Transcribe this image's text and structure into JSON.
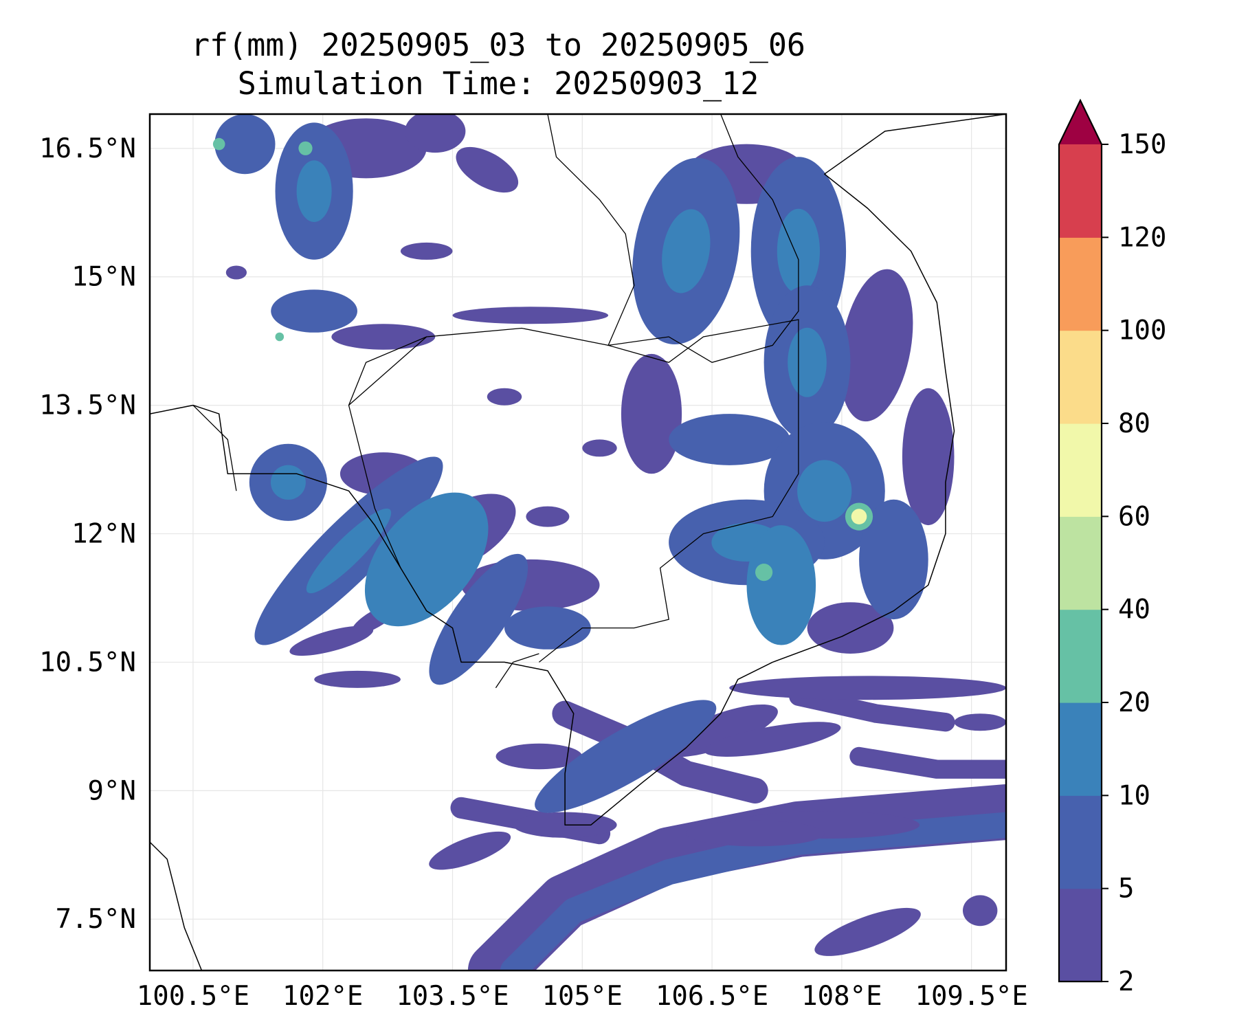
{
  "title": {
    "line1": "rf(mm) 20250905_03 to 20250905_06",
    "line2": "Simulation Time: 20250903_12"
  },
  "map": {
    "lon_range": [
      100.0,
      109.9
    ],
    "lat_range": [
      6.9,
      16.9
    ],
    "lon_ticks": [
      {
        "value": 100.5,
        "label": "100.5°E"
      },
      {
        "value": 102.0,
        "label": "102°E"
      },
      {
        "value": 103.5,
        "label": "103.5°E"
      },
      {
        "value": 105.0,
        "label": "105°E"
      },
      {
        "value": 106.5,
        "label": "106.5°E"
      },
      {
        "value": 108.0,
        "label": "108°E"
      },
      {
        "value": 109.5,
        "label": "109.5°E"
      }
    ],
    "lat_ticks": [
      {
        "value": 7.5,
        "label": "7.5°N"
      },
      {
        "value": 9.0,
        "label": "9°N"
      },
      {
        "value": 10.5,
        "label": "10.5°N"
      },
      {
        "value": 12.0,
        "label": "12°N"
      },
      {
        "value": 13.5,
        "label": "13.5°N"
      },
      {
        "value": 15.0,
        "label": "15°N"
      },
      {
        "value": 16.5,
        "label": "16.5°N"
      }
    ],
    "grid": true
  },
  "colorbar": {
    "levels": [
      "2",
      "5",
      "10",
      "20",
      "40",
      "60",
      "80",
      "100",
      "120",
      "150"
    ],
    "colors": [
      "#5a4fa2",
      "#4761ae",
      "#3a82ba",
      "#66c1a5",
      "#bde3a1",
      "#f1f8aa",
      "#fbdc8a",
      "#f89c5a",
      "#d73f4e",
      "#9e0142"
    ],
    "extend": "max"
  },
  "rain_features": [
    {
      "lon": 101.1,
      "lat": 16.55,
      "rx": 0.35,
      "ry": 0.35,
      "ang": 0,
      "lvl": 1
    },
    {
      "lon": 101.9,
      "lat": 16.0,
      "rx": 0.45,
      "ry": 0.8,
      "ang": 0,
      "lvl": 1
    },
    {
      "lon": 102.5,
      "lat": 16.5,
      "rx": 0.7,
      "ry": 0.35,
      "ang": 0,
      "lvl": 0
    },
    {
      "lon": 103.3,
      "lat": 16.7,
      "rx": 0.35,
      "ry": 0.25,
      "ang": 0,
      "lvl": 0
    },
    {
      "lon": 103.9,
      "lat": 16.25,
      "rx": 0.4,
      "ry": 0.2,
      "ang": 30,
      "lvl": 0
    },
    {
      "lon": 101.9,
      "lat": 14.6,
      "rx": 0.5,
      "ry": 0.25,
      "ang": 0,
      "lvl": 1
    },
    {
      "lon": 102.7,
      "lat": 14.3,
      "rx": 0.6,
      "ry": 0.15,
      "ang": 0,
      "lvl": 0
    },
    {
      "lon": 104.4,
      "lat": 14.55,
      "rx": 0.9,
      "ry": 0.1,
      "ang": 0,
      "lvl": 0
    },
    {
      "lon": 101.6,
      "lat": 12.6,
      "rx": 0.45,
      "ry": 0.45,
      "ang": 0,
      "lvl": 1
    },
    {
      "lon": 102.7,
      "lat": 12.7,
      "rx": 0.5,
      "ry": 0.25,
      "ang": 0,
      "lvl": 0
    },
    {
      "lon": 102.3,
      "lat": 11.8,
      "rx": 1.5,
      "ry": 0.35,
      "ang": -45,
      "lvl": 1
    },
    {
      "lon": 103.2,
      "lat": 11.7,
      "rx": 0.9,
      "ry": 0.55,
      "ang": -50,
      "lvl": 2
    },
    {
      "lon": 103.6,
      "lat": 12.0,
      "rx": 0.7,
      "ry": 0.35,
      "ang": -30,
      "lvl": 0
    },
    {
      "lon": 103.8,
      "lat": 11.0,
      "rx": 0.9,
      "ry": 0.3,
      "ang": -55,
      "lvl": 1
    },
    {
      "lon": 104.4,
      "lat": 11.4,
      "rx": 0.8,
      "ry": 0.3,
      "ang": 0,
      "lvl": 0
    },
    {
      "lon": 104.6,
      "lat": 10.9,
      "rx": 0.5,
      "ry": 0.25,
      "ang": 0,
      "lvl": 1
    },
    {
      "lon": 102.1,
      "lat": 10.75,
      "rx": 0.5,
      "ry": 0.12,
      "ang": -15,
      "lvl": 0
    },
    {
      "lon": 102.4,
      "lat": 10.3,
      "rx": 0.5,
      "ry": 0.1,
      "ang": 0,
      "lvl": 0
    },
    {
      "lon": 106.2,
      "lat": 15.3,
      "rx": 0.6,
      "ry": 1.1,
      "ang": 10,
      "lvl": 1
    },
    {
      "lon": 107.5,
      "lat": 15.3,
      "rx": 0.55,
      "ry": 1.1,
      "ang": 0,
      "lvl": 1
    },
    {
      "lon": 106.9,
      "lat": 16.2,
      "rx": 0.7,
      "ry": 0.35,
      "ang": 0,
      "lvl": 0
    },
    {
      "lon": 107.6,
      "lat": 14.0,
      "rx": 0.5,
      "ry": 0.9,
      "ang": 0,
      "lvl": 1
    },
    {
      "lon": 108.4,
      "lat": 14.2,
      "rx": 0.4,
      "ry": 0.9,
      "ang": 10,
      "lvl": 0
    },
    {
      "lon": 105.8,
      "lat": 13.4,
      "rx": 0.35,
      "ry": 0.7,
      "ang": 0,
      "lvl": 0
    },
    {
      "lon": 106.7,
      "lat": 13.1,
      "rx": 0.7,
      "ry": 0.3,
      "ang": 0,
      "lvl": 1
    },
    {
      "lon": 107.8,
      "lat": 12.5,
      "rx": 0.7,
      "ry": 0.8,
      "ang": 0,
      "lvl": 1
    },
    {
      "lon": 106.9,
      "lat": 11.9,
      "rx": 0.9,
      "ry": 0.5,
      "ang": 0,
      "lvl": 1
    },
    {
      "lon": 107.3,
      "lat": 11.4,
      "rx": 0.4,
      "ry": 0.7,
      "ang": 0,
      "lvl": 2
    },
    {
      "lon": 108.6,
      "lat": 11.7,
      "rx": 0.4,
      "ry": 0.7,
      "ang": 0,
      "lvl": 1
    },
    {
      "lon": 109.0,
      "lat": 12.9,
      "rx": 0.3,
      "ry": 0.8,
      "ang": 0,
      "lvl": 0
    },
    {
      "lon": 108.1,
      "lat": 10.9,
      "rx": 0.5,
      "ry": 0.3,
      "ang": 0,
      "lvl": 0
    },
    {
      "lon": 105.5,
      "lat": 9.4,
      "rx": 1.2,
      "ry": 0.3,
      "ang": -30,
      "lvl": 1
    },
    {
      "lon": 106.6,
      "lat": 9.7,
      "rx": 0.7,
      "ry": 0.2,
      "ang": -20,
      "lvl": 0
    },
    {
      "lon": 104.5,
      "lat": 9.4,
      "rx": 0.5,
      "ry": 0.15,
      "ang": 0,
      "lvl": 0
    },
    {
      "lon": 103.7,
      "lat": 8.3,
      "rx": 0.5,
      "ry": 0.15,
      "ang": -20,
      "lvl": 0
    },
    {
      "lon": 104.8,
      "lat": 8.6,
      "rx": 0.6,
      "ry": 0.15,
      "ang": 0,
      "lvl": 0
    },
    {
      "lon": 108.3,
      "lat": 10.2,
      "rx": 1.6,
      "ry": 0.14,
      "ang": 0,
      "lvl": 0
    },
    {
      "lon": 107.2,
      "lat": 9.6,
      "rx": 0.8,
      "ry": 0.15,
      "ang": -10,
      "lvl": 0
    },
    {
      "lon": 107.8,
      "lat": 8.6,
      "rx": 1.1,
      "ry": 0.16,
      "ang": 0,
      "lvl": 0
    },
    {
      "lon": 107.0,
      "lat": 8.5,
      "rx": 0.8,
      "ry": 0.15,
      "ang": 0,
      "lvl": 0
    },
    {
      "lon": 108.3,
      "lat": 7.35,
      "rx": 0.65,
      "ry": 0.18,
      "ang": -20,
      "lvl": 0
    },
    {
      "lon": 109.6,
      "lat": 7.6,
      "rx": 0.2,
      "ry": 0.18,
      "ang": 0,
      "lvl": 0
    },
    {
      "lon": 109.6,
      "lat": 9.8,
      "rx": 0.3,
      "ry": 0.1,
      "ang": 0,
      "lvl": 0
    },
    {
      "lon": 105.2,
      "lat": 13.0,
      "rx": 0.2,
      "ry": 0.1,
      "ang": 0,
      "lvl": 0
    },
    {
      "lon": 104.1,
      "lat": 13.6,
      "rx": 0.2,
      "ry": 0.1,
      "ang": 0,
      "lvl": 0
    },
    {
      "lon": 104.6,
      "lat": 12.2,
      "rx": 0.25,
      "ry": 0.12,
      "ang": 0,
      "lvl": 0
    },
    {
      "lon": 102.6,
      "lat": 11.0,
      "rx": 0.3,
      "ry": 0.1,
      "ang": -30,
      "lvl": 0
    },
    {
      "lon": 101.0,
      "lat": 15.05,
      "rx": 0.12,
      "ry": 0.08,
      "ang": 0,
      "lvl": 0
    },
    {
      "lon": 103.2,
      "lat": 15.3,
      "rx": 0.3,
      "ry": 0.1,
      "ang": 0,
      "lvl": 0
    }
  ],
  "rain_bands": [
    {
      "lvl": 0,
      "w": 0.65,
      "pts": [
        [
          104.0,
          6.9
        ],
        [
          104.8,
          7.7
        ],
        [
          106.0,
          8.25
        ],
        [
          107.5,
          8.55
        ],
        [
          109.9,
          8.75
        ]
      ]
    },
    {
      "lvl": 1,
      "w": 0.3,
      "pts": [
        [
          104.2,
          6.9
        ],
        [
          104.9,
          7.6
        ],
        [
          106.0,
          8.05
        ],
        [
          107.5,
          8.4
        ],
        [
          109.9,
          8.6
        ]
      ]
    },
    {
      "lvl": 0,
      "w": 0.22,
      "pts": [
        [
          108.2,
          9.4
        ],
        [
          109.1,
          9.25
        ],
        [
          109.9,
          9.25
        ]
      ]
    },
    {
      "lvl": 0,
      "w": 0.3,
      "pts": [
        [
          104.8,
          9.9
        ],
        [
          105.5,
          9.6
        ],
        [
          106.2,
          9.2
        ],
        [
          107.0,
          9.0
        ]
      ]
    },
    {
      "lvl": 0,
      "w": 0.25,
      "pts": [
        [
          103.6,
          8.8
        ],
        [
          104.4,
          8.65
        ],
        [
          105.2,
          8.5
        ]
      ]
    },
    {
      "lvl": 0,
      "w": 0.22,
      "pts": [
        [
          107.5,
          10.1
        ],
        [
          108.4,
          9.9
        ],
        [
          109.2,
          9.8
        ]
      ]
    }
  ],
  "rain_hotspots": [
    {
      "lon": 108.2,
      "lat": 12.2,
      "r": 0.09,
      "lvl": 5
    },
    {
      "lon": 108.2,
      "lat": 12.2,
      "r": 0.16,
      "lvl": 3
    },
    {
      "lon": 101.8,
      "lat": 16.5,
      "r": 0.08,
      "lvl": 3
    },
    {
      "lon": 100.8,
      "lat": 16.55,
      "r": 0.07,
      "lvl": 3
    },
    {
      "lon": 107.1,
      "lat": 11.55,
      "r": 0.1,
      "lvl": 3
    },
    {
      "lon": 101.5,
      "lat": 14.3,
      "r": 0.05,
      "lvl": 3
    }
  ],
  "coastlines": [
    [
      [
        109.9,
        16.9
      ],
      [
        108.5,
        16.7
      ],
      [
        107.8,
        16.2
      ],
      [
        108.3,
        15.8
      ],
      [
        108.8,
        15.3
      ],
      [
        109.1,
        14.7
      ],
      [
        109.2,
        13.9
      ],
      [
        109.3,
        13.2
      ],
      [
        109.2,
        12.6
      ],
      [
        109.2,
        12.0
      ],
      [
        109.0,
        11.4
      ],
      [
        108.6,
        11.1
      ],
      [
        108.0,
        10.8
      ],
      [
        107.2,
        10.5
      ],
      [
        106.8,
        10.3
      ],
      [
        106.6,
        9.9
      ],
      [
        106.2,
        9.5
      ],
      [
        105.7,
        9.1
      ],
      [
        105.1,
        8.6
      ],
      [
        104.8,
        8.6
      ],
      [
        104.8,
        9.2
      ],
      [
        104.9,
        9.9
      ],
      [
        104.6,
        10.4
      ],
      [
        104.1,
        10.5
      ],
      [
        103.6,
        10.5
      ],
      [
        103.5,
        10.9
      ],
      [
        103.2,
        11.1
      ],
      [
        102.9,
        11.6
      ],
      [
        102.6,
        12.1
      ],
      [
        102.3,
        12.5
      ],
      [
        101.7,
        12.7
      ],
      [
        100.9,
        12.7
      ],
      [
        100.8,
        13.4
      ],
      [
        100.5,
        13.5
      ],
      [
        100.0,
        13.4
      ]
    ],
    [
      [
        100.0,
        8.4
      ],
      [
        100.2,
        8.2
      ],
      [
        100.3,
        7.8
      ],
      [
        100.4,
        7.4
      ],
      [
        100.6,
        6.9
      ]
    ]
  ],
  "borders": [
    [
      [
        104.6,
        16.9
      ],
      [
        104.7,
        16.4
      ],
      [
        105.2,
        15.9
      ],
      [
        105.5,
        15.5
      ],
      [
        105.6,
        14.9
      ],
      [
        105.3,
        14.2
      ],
      [
        106.0,
        14.3
      ],
      [
        106.5,
        14.0
      ],
      [
        107.2,
        14.2
      ],
      [
        107.5,
        14.6
      ],
      [
        107.5,
        15.2
      ],
      [
        107.2,
        15.9
      ],
      [
        106.8,
        16.4
      ],
      [
        106.6,
        16.9
      ]
    ],
    [
      [
        102.3,
        13.5
      ],
      [
        103.2,
        14.3
      ],
      [
        104.3,
        14.4
      ],
      [
        105.3,
        14.2
      ],
      [
        106.0,
        14.0
      ],
      [
        106.4,
        14.3
      ],
      [
        107.5,
        14.5
      ],
      [
        107.5,
        13.6
      ],
      [
        107.5,
        12.7
      ],
      [
        107.2,
        12.2
      ],
      [
        106.4,
        12.0
      ],
      [
        105.9,
        11.6
      ],
      [
        106.0,
        11.0
      ],
      [
        105.6,
        10.9
      ],
      [
        105.0,
        10.9
      ],
      [
        104.5,
        10.5
      ]
    ],
    [
      [
        102.9,
        11.6
      ],
      [
        102.6,
        12.3
      ],
      [
        102.3,
        13.5
      ],
      [
        102.5,
        14.0
      ],
      [
        103.2,
        14.3
      ]
    ],
    [
      [
        100.5,
        13.5
      ],
      [
        100.9,
        13.1
      ],
      [
        101.0,
        12.5
      ]
    ],
    [
      [
        104.0,
        10.2
      ],
      [
        104.2,
        10.5
      ],
      [
        104.5,
        10.6
      ]
    ]
  ]
}
